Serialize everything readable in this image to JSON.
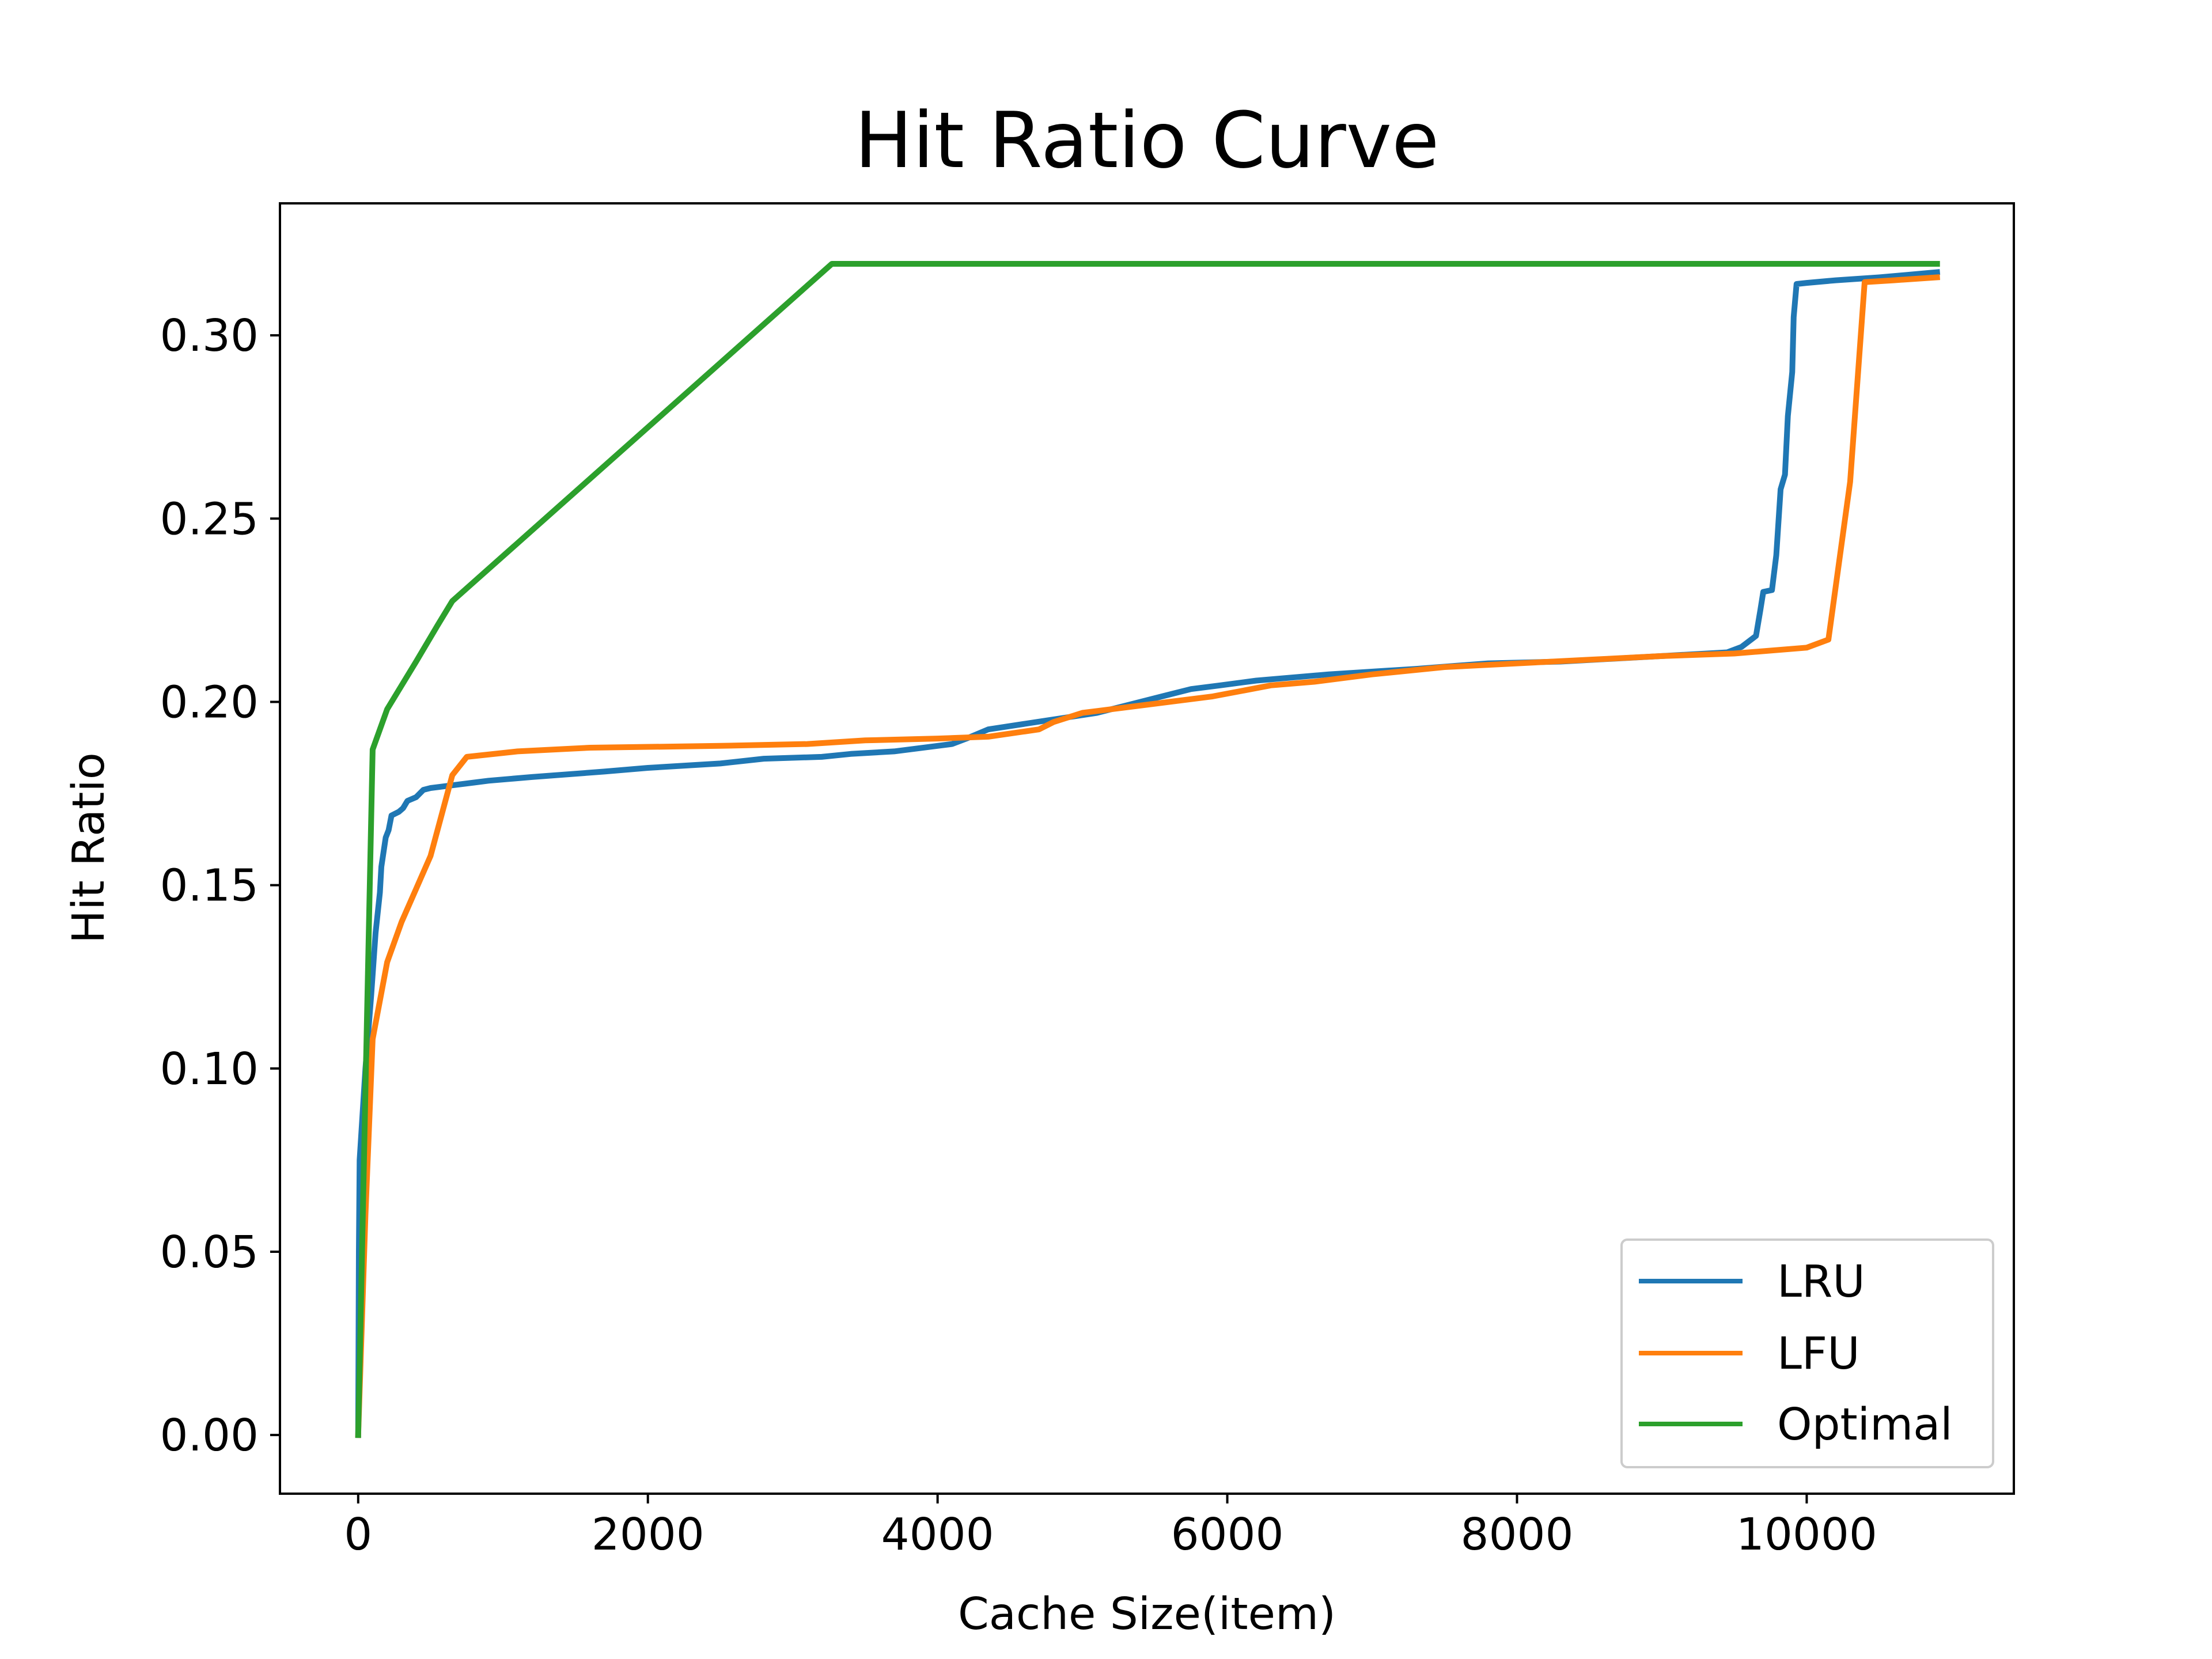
{
  "chart_data": {
    "type": "line",
    "title": "Hit Ratio Curve",
    "xlabel": "Cache Size(item)",
    "ylabel": "Hit Ratio",
    "xlim": [
      -540,
      11430
    ],
    "ylim": [
      -0.016,
      0.336
    ],
    "xticks": [
      0,
      2000,
      4000,
      6000,
      8000,
      10000
    ],
    "xtick_labels": [
      "0",
      "2000",
      "4000",
      "6000",
      "8000",
      "10000"
    ],
    "yticks": [
      0.0,
      0.05,
      0.1,
      0.15,
      0.2,
      0.25,
      0.3
    ],
    "ytick_labels": [
      "0.00",
      "0.05",
      "0.10",
      "0.15",
      "0.20",
      "0.25",
      "0.30"
    ],
    "grid": false,
    "legend_position": "lower right",
    "series": [
      {
        "name": "LRU",
        "color": "#1f77b4",
        "points": [
          [
            0,
            0
          ],
          [
            5,
            0.05
          ],
          [
            10,
            0.075
          ],
          [
            50,
            0.1
          ],
          [
            90,
            0.12
          ],
          [
            120,
            0.137
          ],
          [
            150,
            0.148
          ],
          [
            160,
            0.155
          ],
          [
            190,
            0.163
          ],
          [
            210,
            0.165
          ],
          [
            230,
            0.169
          ],
          [
            280,
            0.17
          ],
          [
            310,
            0.171
          ],
          [
            340,
            0.173
          ],
          [
            400,
            0.174
          ],
          [
            450,
            0.176
          ],
          [
            500,
            0.1765
          ],
          [
            600,
            0.177
          ],
          [
            800,
            0.178
          ],
          [
            900,
            0.1785
          ],
          [
            1200,
            0.1795
          ],
          [
            1700,
            0.181
          ],
          [
            2000,
            0.182
          ],
          [
            2500,
            0.1832
          ],
          [
            2800,
            0.1845
          ],
          [
            3200,
            0.185
          ],
          [
            3400,
            0.1858
          ],
          [
            3700,
            0.1865
          ],
          [
            4000,
            0.188
          ],
          [
            4100,
            0.1885
          ],
          [
            4200,
            0.19
          ],
          [
            4350,
            0.1925
          ],
          [
            4600,
            0.194
          ],
          [
            4850,
            0.1955
          ],
          [
            5100,
            0.197
          ],
          [
            5300,
            0.199
          ],
          [
            5550,
            0.2015
          ],
          [
            5750,
            0.2035
          ],
          [
            5950,
            0.2045
          ],
          [
            6200,
            0.2058
          ],
          [
            6700,
            0.2075
          ],
          [
            7300,
            0.209
          ],
          [
            7800,
            0.2105
          ],
          [
            8300,
            0.211
          ],
          [
            9000,
            0.2125
          ],
          [
            9450,
            0.2135
          ],
          [
            9550,
            0.215
          ],
          [
            9650,
            0.218
          ],
          [
            9680,
            0.225
          ],
          [
            9700,
            0.23
          ],
          [
            9760,
            0.2305
          ],
          [
            9790,
            0.24
          ],
          [
            9820,
            0.258
          ],
          [
            9850,
            0.262
          ],
          [
            9870,
            0.278
          ],
          [
            9900,
            0.29
          ],
          [
            9910,
            0.305
          ],
          [
            9930,
            0.314
          ],
          [
            10000,
            0.3143
          ],
          [
            10200,
            0.315
          ],
          [
            10500,
            0.3158
          ],
          [
            10900,
            0.3172
          ]
        ]
      },
      {
        "name": "LFU",
        "color": "#ff7f0e",
        "points": [
          [
            0,
            0
          ],
          [
            50,
            0.06
          ],
          [
            100,
            0.108
          ],
          [
            200,
            0.129
          ],
          [
            300,
            0.14
          ],
          [
            400,
            0.149
          ],
          [
            500,
            0.158
          ],
          [
            650,
            0.18
          ],
          [
            750,
            0.185
          ],
          [
            1100,
            0.1865
          ],
          [
            1600,
            0.1875
          ],
          [
            2500,
            0.188
          ],
          [
            3100,
            0.1885
          ],
          [
            3500,
            0.1895
          ],
          [
            4000,
            0.19
          ],
          [
            4350,
            0.1905
          ],
          [
            4700,
            0.1925
          ],
          [
            4800,
            0.1945
          ],
          [
            5000,
            0.197
          ],
          [
            5300,
            0.1985
          ],
          [
            5900,
            0.2015
          ],
          [
            6300,
            0.2045
          ],
          [
            6600,
            0.2055
          ],
          [
            7000,
            0.2075
          ],
          [
            7500,
            0.2095
          ],
          [
            8000,
            0.2105
          ],
          [
            8500,
            0.2115
          ],
          [
            9000,
            0.2125
          ],
          [
            9500,
            0.2132
          ],
          [
            10000,
            0.2148
          ],
          [
            10150,
            0.217
          ],
          [
            10300,
            0.26
          ],
          [
            10400,
            0.3145
          ],
          [
            10600,
            0.315
          ],
          [
            10900,
            0.3158
          ]
        ]
      },
      {
        "name": "Optimal",
        "color": "#2ca02c",
        "points": [
          [
            0,
            0
          ],
          [
            100,
            0.187
          ],
          [
            200,
            0.198
          ],
          [
            400,
            0.211
          ],
          [
            550,
            0.221
          ],
          [
            650,
            0.2275
          ],
          [
            3270,
            0.3195
          ],
          [
            10900,
            0.3195
          ]
        ]
      }
    ]
  }
}
